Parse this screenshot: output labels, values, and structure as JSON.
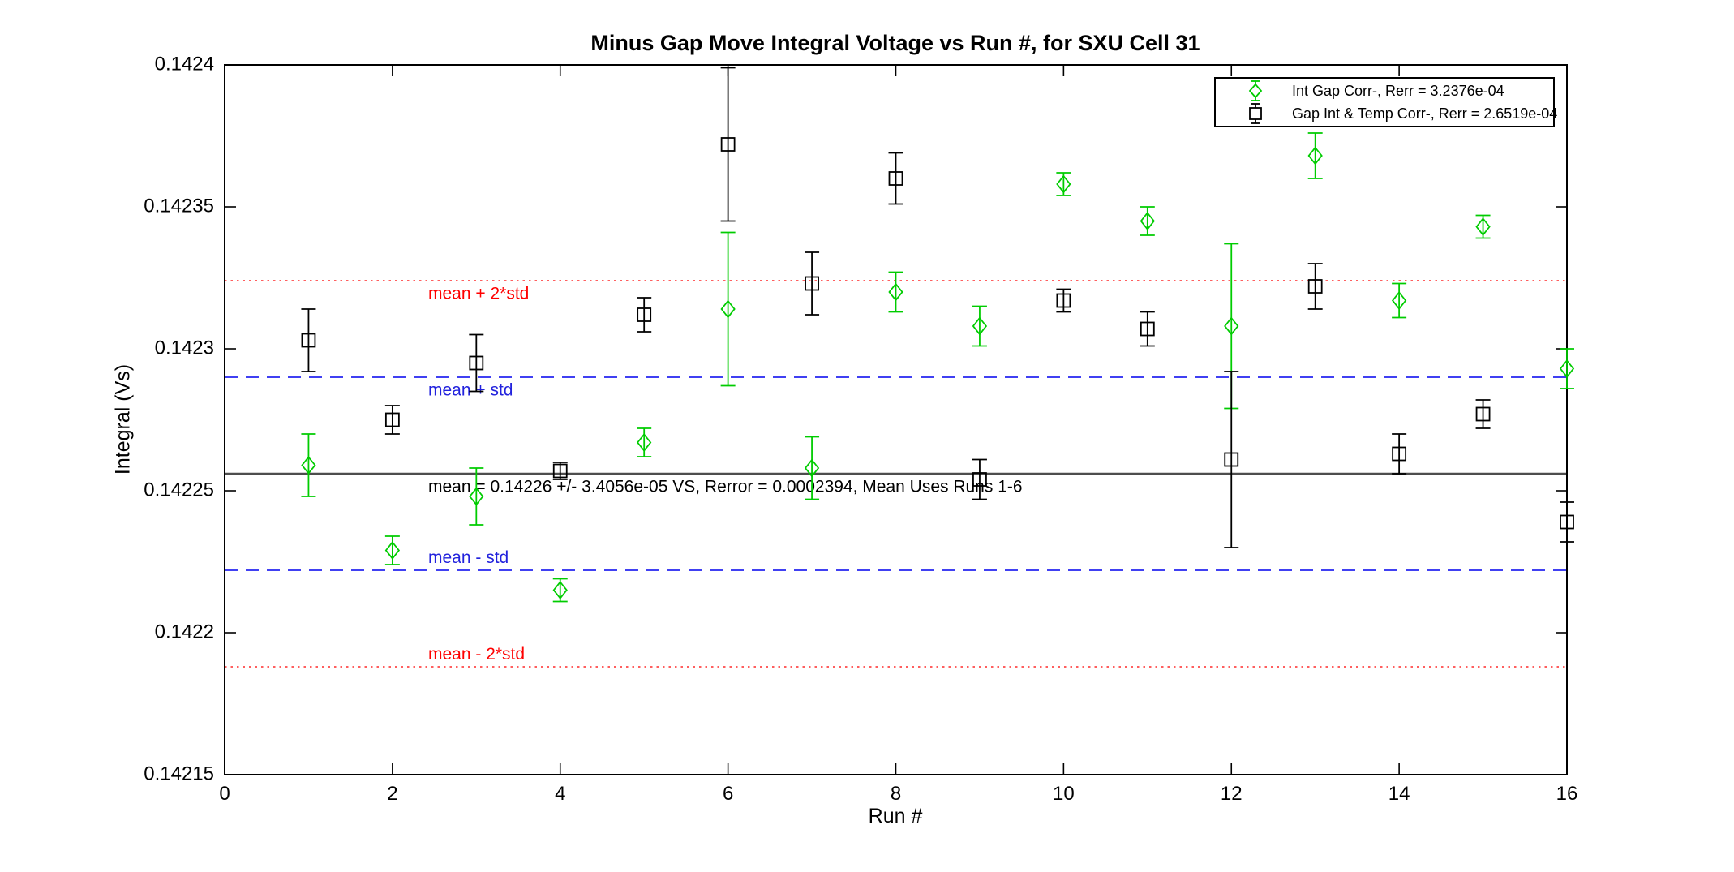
{
  "figure": {
    "title": "Minus Gap Move Integral Voltage vs Run #, for SXU Cell 31",
    "xlabel": "Run #",
    "ylabel": "Integral (Vs)"
  },
  "legend": {
    "items": [
      {
        "label": "Int Gap Corr-, Rerr = 3.2376e-04",
        "marker": "diamond",
        "color": "#00CC00"
      },
      {
        "label": "Gap Int & Temp Corr-, Rerr = 2.6519e-04",
        "marker": "square",
        "color": "#000000"
      }
    ]
  },
  "annotations": {
    "mean_line_text": "mean = 0.14226 +/- 3.4056e-05 VS, Rerror = 0.0002394, Mean Uses Runs 1-6",
    "mean_plus_2std_text": "mean + 2*std",
    "mean_plus_std_text": "mean + std",
    "mean_minus_std_text": "mean - std",
    "mean_minus_2std_text": "mean - 2*std"
  },
  "stats": {
    "mean": "0.14226",
    "std": "3.4056e-05",
    "Rerror": "0.0002394",
    "mean_uses": "Runs 1-6"
  },
  "chart_data": {
    "type": "scatter",
    "title": "Minus Gap Move Integral Voltage vs Run #, for SXU Cell 31",
    "xlabel": "Run #",
    "ylabel": "Integral (Vs)",
    "xlim": [
      0,
      16
    ],
    "ylim": [
      0.14215,
      0.1424
    ],
    "xticks": [
      0,
      2,
      4,
      6,
      8,
      10,
      12,
      14,
      16
    ],
    "yticks": [
      0.1424,
      0.14235,
      0.1423,
      0.14225,
      0.1422,
      0.14215
    ],
    "ytick_labels": [
      "0.1424",
      "0.14235",
      "0.1423",
      "0.14225",
      "0.1422",
      "0.14215"
    ],
    "grid": false,
    "legend_position": "top-right",
    "x": [
      1,
      2,
      3,
      4,
      5,
      6,
      7,
      8,
      9,
      10,
      11,
      12,
      13,
      14,
      15,
      16
    ],
    "series": [
      {
        "name": "Int Gap Corr-",
        "legend_label": "Int Gap Corr-, Rerr = 3.2376e-04",
        "marker": "diamond",
        "color": "#00CC00",
        "values": [
          0.142259,
          0.142229,
          0.142248,
          0.142215,
          0.142267,
          0.142314,
          0.142258,
          0.14232,
          0.142308,
          0.142358,
          0.142345,
          0.142308,
          0.142368,
          0.142317,
          0.142343,
          0.142293
        ],
        "errors": [
          1.1e-05,
          5e-06,
          1e-05,
          4e-06,
          5e-06,
          2.7e-05,
          1.1e-05,
          7e-06,
          7e-06,
          4e-06,
          5e-06,
          2.9e-05,
          8e-06,
          6e-06,
          4e-06,
          7e-06
        ]
      },
      {
        "name": "Gap Int & Temp Corr-",
        "legend_label": "Gap Int & Temp Corr-, Rerr = 2.6519e-04",
        "marker": "square",
        "color": "#000000",
        "values": [
          0.142303,
          0.142275,
          0.142295,
          0.142257,
          0.142312,
          0.142372,
          0.142323,
          0.14236,
          0.142254,
          0.142317,
          0.142307,
          0.142261,
          0.142322,
          0.142263,
          0.142277,
          0.142239
        ],
        "errors": [
          1.1e-05,
          5e-06,
          1e-05,
          3e-06,
          6e-06,
          2.7e-05,
          1.1e-05,
          9e-06,
          7e-06,
          4e-06,
          6e-06,
          3.1e-05,
          8e-06,
          7e-06,
          5e-06,
          7e-06
        ]
      }
    ],
    "reference_lines": [
      {
        "value": 0.142324,
        "style": "dotted",
        "color": "#FF2A2A",
        "label": "mean + 2*std",
        "label_color": "#FF0000",
        "label_side": "below"
      },
      {
        "value": 0.14229,
        "style": "dashed",
        "color": "#2626F0",
        "label": "mean + std",
        "label_color": "#2222DD",
        "label_side": "below"
      },
      {
        "value": 0.142256,
        "style": "solid",
        "color": "#4D4D4D",
        "label": "mean = 0.14226 +/- 3.4056e-05 VS, Rerror = 0.0002394, Mean Uses Runs 1-6",
        "label_color": "#000000",
        "label_side": "below"
      },
      {
        "value": 0.142222,
        "style": "dashed",
        "color": "#2626F0",
        "label": "mean - std",
        "label_color": "#2222DD",
        "label_side": "above"
      },
      {
        "value": 0.142188,
        "style": "dotted",
        "color": "#FF2A2A",
        "label": "mean - 2*std",
        "label_color": "#FF0000",
        "label_side": "above"
      }
    ]
  }
}
